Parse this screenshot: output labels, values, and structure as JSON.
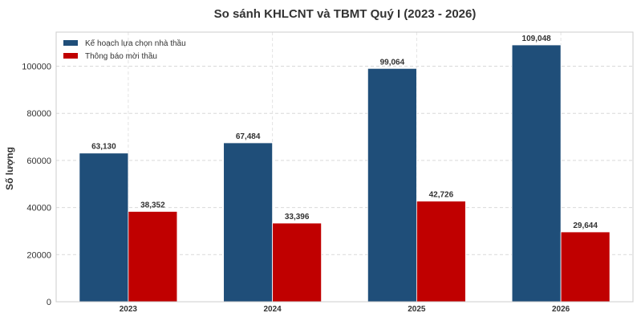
{
  "chart_data": {
    "type": "bar",
    "title": "So sánh KHLCNT và TBMT Quý I (2023 - 2026)",
    "xlabel": "",
    "ylabel": "Số lượng",
    "categories": [
      "2023",
      "2024",
      "2025",
      "2026"
    ],
    "series": [
      {
        "name": "Kế hoạch lựa chọn nhà thầu",
        "color": "#1f4e79",
        "values": [
          63130,
          67484,
          99064,
          109048
        ]
      },
      {
        "name": "Thông báo mời thầu",
        "color": "#c00000",
        "values": [
          38352,
          33396,
          42726,
          29644
        ]
      }
    ],
    "data_labels": [
      [
        "63,130",
        "67,484",
        "99,064",
        "109,048"
      ],
      [
        "38,352",
        "33,396",
        "42,726",
        "29,644"
      ]
    ],
    "ylim": [
      0,
      114500
    ],
    "yticks": [
      0,
      20000,
      40000,
      60000,
      80000,
      100000
    ],
    "ytick_labels": [
      "0",
      "20000",
      "40000",
      "60000",
      "80000",
      "100000"
    ],
    "grid": true,
    "legend_position": "top-left"
  }
}
